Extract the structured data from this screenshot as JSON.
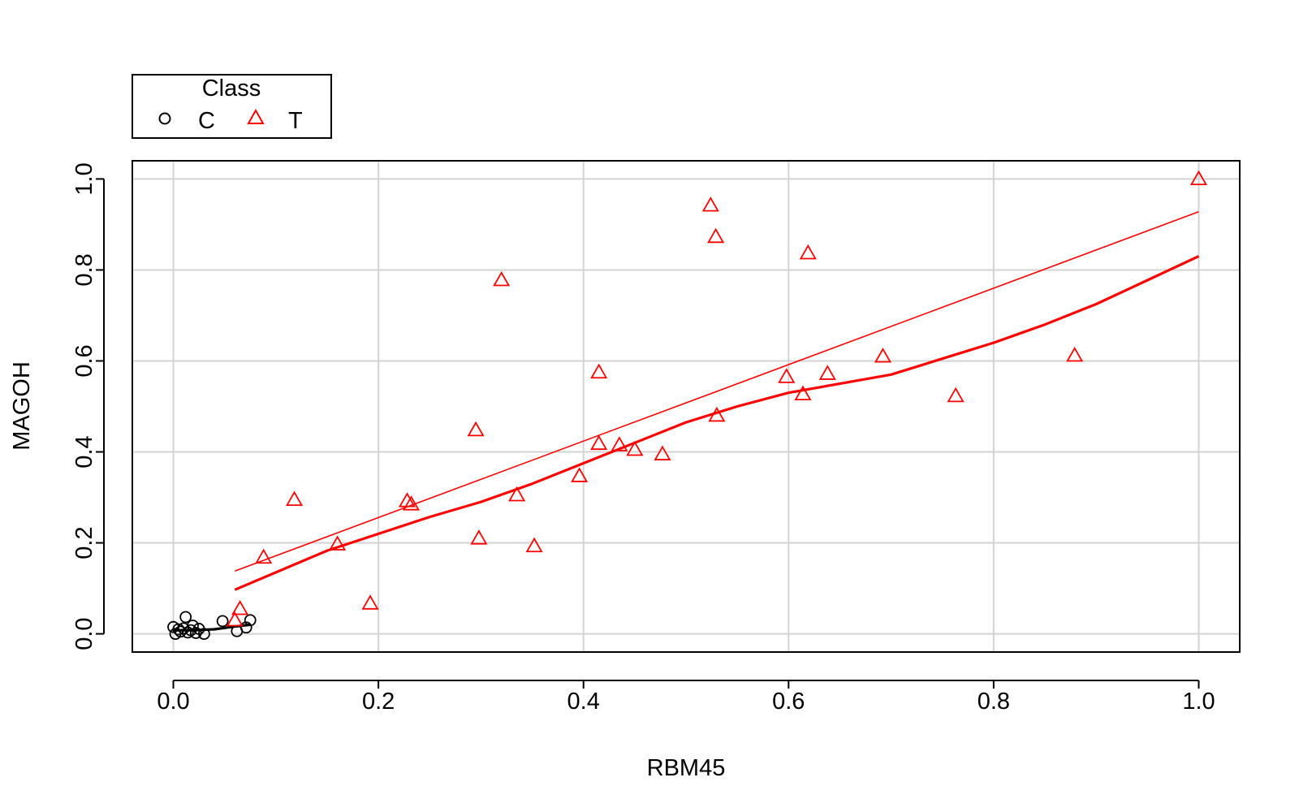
{
  "chart_data": {
    "type": "scatter",
    "title": "",
    "xlabel": "RBM45",
    "ylabel": "MAGOH",
    "xlim": [
      -0.04,
      1.04
    ],
    "ylim": [
      -0.04,
      1.04
    ],
    "xticks": [
      0.0,
      0.2,
      0.4,
      0.6,
      0.8,
      1.0
    ],
    "xtick_labels": [
      "0.0",
      "0.2",
      "0.4",
      "0.6",
      "0.8",
      "1.0"
    ],
    "yticks": [
      0.0,
      0.2,
      0.4,
      0.6,
      0.8,
      1.0
    ],
    "ytick_labels": [
      "0.0",
      "0.2",
      "0.4",
      "0.6",
      "0.8",
      "1.0"
    ],
    "grid": true,
    "legend": {
      "title": "Class",
      "placement": "top-left, outside plot",
      "entries": [
        {
          "label": "C",
          "marker": "circle",
          "color": "#000000"
        },
        {
          "label": "T",
          "marker": "triangle",
          "color": "#ff0000"
        }
      ]
    },
    "series": [
      {
        "name": "C",
        "marker": "circle",
        "color": "#000000",
        "points": [
          [
            0.0,
            0.015
          ],
          [
            0.002,
            0.0
          ],
          [
            0.005,
            0.01
          ],
          [
            0.007,
            0.005
          ],
          [
            0.01,
            0.012
          ],
          [
            0.012,
            0.037
          ],
          [
            0.014,
            0.003
          ],
          [
            0.017,
            0.008
          ],
          [
            0.019,
            0.018
          ],
          [
            0.022,
            0.002
          ],
          [
            0.025,
            0.011
          ],
          [
            0.03,
            0.0
          ],
          [
            0.048,
            0.028
          ],
          [
            0.062,
            0.006
          ],
          [
            0.071,
            0.014
          ],
          [
            0.075,
            0.03
          ]
        ],
        "smooth": [
          [
            0.0,
            0.008
          ],
          [
            0.02,
            0.008
          ],
          [
            0.04,
            0.01
          ],
          [
            0.06,
            0.016
          ],
          [
            0.075,
            0.02
          ]
        ]
      },
      {
        "name": "T",
        "marker": "triangle",
        "color": "#ff0000",
        "points": [
          [
            0.06,
            0.03
          ],
          [
            0.065,
            0.055
          ],
          [
            0.088,
            0.168
          ],
          [
            0.118,
            0.295
          ],
          [
            0.16,
            0.197
          ],
          [
            0.192,
            0.067
          ],
          [
            0.228,
            0.292
          ],
          [
            0.232,
            0.285
          ],
          [
            0.295,
            0.448
          ],
          [
            0.298,
            0.21
          ],
          [
            0.32,
            0.778
          ],
          [
            0.335,
            0.305
          ],
          [
            0.352,
            0.193
          ],
          [
            0.396,
            0.347
          ],
          [
            0.415,
            0.575
          ],
          [
            0.415,
            0.418
          ],
          [
            0.435,
            0.415
          ],
          [
            0.45,
            0.405
          ],
          [
            0.477,
            0.395
          ],
          [
            0.524,
            0.942
          ],
          [
            0.529,
            0.873
          ],
          [
            0.53,
            0.48
          ],
          [
            0.598,
            0.565
          ],
          [
            0.614,
            0.527
          ],
          [
            0.619,
            0.837
          ],
          [
            0.638,
            0.572
          ],
          [
            0.692,
            0.61
          ],
          [
            0.763,
            0.523
          ],
          [
            0.879,
            0.612
          ],
          [
            1.0,
            1.0
          ]
        ],
        "regression_line": [
          [
            0.06,
            0.138
          ],
          [
            1.0,
            0.928
          ]
        ],
        "smooth": [
          [
            0.06,
            0.097
          ],
          [
            0.15,
            0.183
          ],
          [
            0.25,
            0.257
          ],
          [
            0.3,
            0.29
          ],
          [
            0.35,
            0.33
          ],
          [
            0.4,
            0.375
          ],
          [
            0.45,
            0.42
          ],
          [
            0.5,
            0.465
          ],
          [
            0.55,
            0.5
          ],
          [
            0.6,
            0.53
          ],
          [
            0.7,
            0.57
          ],
          [
            0.75,
            0.605
          ],
          [
            0.8,
            0.64
          ],
          [
            0.85,
            0.68
          ],
          [
            0.9,
            0.725
          ],
          [
            1.0,
            0.83
          ]
        ]
      }
    ]
  }
}
